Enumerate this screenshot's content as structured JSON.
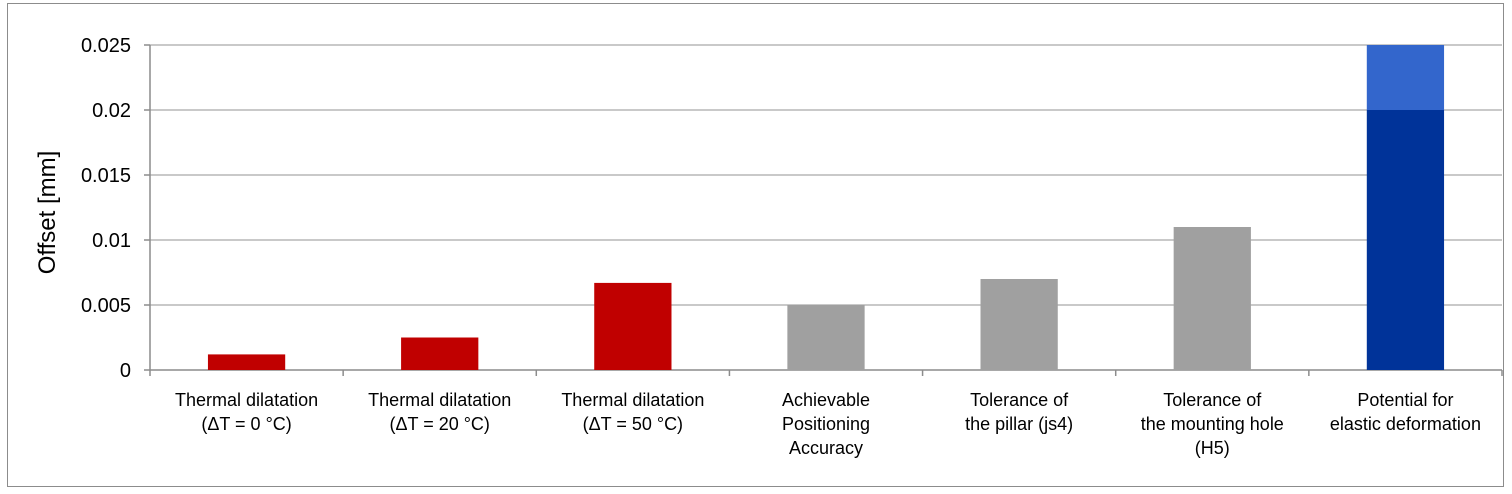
{
  "chart_data": {
    "type": "bar",
    "stacked": true,
    "ylabel": "Offset [mm]",
    "ylim": [
      0,
      0.025
    ],
    "yticks": [
      "0",
      "0.005",
      "0.01",
      "0.015",
      "0.02",
      "0.025"
    ],
    "grid": true,
    "legend": "none",
    "categories": [
      [
        "Thermal dilatation",
        "(ΔT = 0 °C)"
      ],
      [
        "Thermal dilatation",
        "(ΔT = 20 °C)"
      ],
      [
        "Thermal dilatation",
        "(ΔT = 50 °C)"
      ],
      [
        "Achievable",
        "Positioning",
        "Accuracy"
      ],
      [
        "Tolerance of",
        "the pillar (js4)"
      ],
      [
        "Tolerance of",
        "the mounting hole",
        "(H5)"
      ],
      [
        "Potential for",
        "elastic deformation"
      ]
    ],
    "series": [
      {
        "values": [
          0.0012,
          0.0025,
          0.0067,
          0.005,
          0.007,
          0.011,
          0.02
        ],
        "colors": [
          "#c00000",
          "#c00000",
          "#c00000",
          "#a0a0a0",
          "#a0a0a0",
          "#a0a0a0",
          "#003399"
        ]
      },
      {
        "values": [
          0,
          0,
          0,
          0,
          0,
          0,
          0.005
        ],
        "colors": [
          "#3366cc",
          "#3366cc",
          "#3366cc",
          "#3366cc",
          "#3366cc",
          "#3366cc",
          "#3366cc"
        ]
      }
    ]
  }
}
